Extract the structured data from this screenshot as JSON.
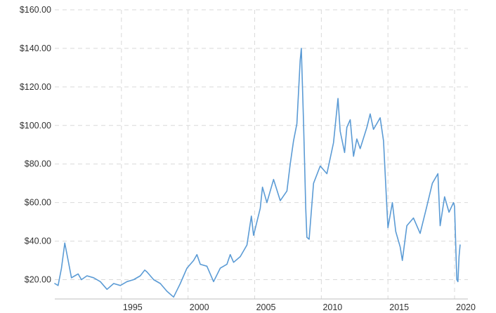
{
  "chart_data": {
    "type": "line",
    "title": "",
    "xlabel": "",
    "ylabel": "",
    "ylim": [
      10,
      160
    ],
    "xlim": [
      "1990-01",
      "2021-01"
    ],
    "y_ticks": [
      20,
      40,
      60,
      80,
      100,
      120,
      140,
      160
    ],
    "y_tick_labels": [
      "$20.00",
      "$40.00",
      "$60.00",
      "$80.00",
      "$100.00",
      "$120.00",
      "$140.00",
      "$160.00"
    ],
    "x_ticks": [
      "1995",
      "2000",
      "2005",
      "2010",
      "2015",
      "2020"
    ],
    "grid": true,
    "line_color": "#5b9bd5",
    "series": [
      {
        "x": [
          "1990-01",
          "1990-04",
          "1990-07",
          "1990-10",
          "1991-01",
          "1991-04",
          "1991-07",
          "1991-10",
          "1992-01",
          "1992-06",
          "1992-12",
          "1993-06",
          "1993-12",
          "1994-06",
          "1994-12",
          "1995-06",
          "1995-12",
          "1996-06",
          "1996-10",
          "1996-12",
          "1997-06",
          "1997-12",
          "1998-06",
          "1998-12",
          "1999-06",
          "1999-12",
          "2000-06",
          "2000-09",
          "2000-12",
          "2001-06",
          "2001-12",
          "2002-06",
          "2002-12",
          "2003-03",
          "2003-06",
          "2003-12",
          "2004-06",
          "2004-10",
          "2004-12",
          "2005-06",
          "2005-08",
          "2005-12",
          "2006-06",
          "2006-12",
          "2007-06",
          "2007-09",
          "2007-12",
          "2008-03",
          "2008-06",
          "2008-07",
          "2008-09",
          "2008-11",
          "2008-12",
          "2009-02",
          "2009-06",
          "2009-12",
          "2010-06",
          "2010-12",
          "2011-04",
          "2011-06",
          "2011-10",
          "2011-12",
          "2012-03",
          "2012-06",
          "2012-09",
          "2012-12",
          "2013-06",
          "2013-09",
          "2013-12",
          "2014-03",
          "2014-06",
          "2014-09",
          "2014-12",
          "2015-01",
          "2015-05",
          "2015-08",
          "2015-12",
          "2016-02",
          "2016-06",
          "2016-12",
          "2017-06",
          "2017-12",
          "2018-05",
          "2018-10",
          "2018-12",
          "2019-04",
          "2019-08",
          "2019-12",
          "2020-01",
          "2020-03",
          "2020-04",
          "2020-05",
          "2020-06"
        ],
        "values": [
          18,
          17,
          26,
          39,
          30,
          21,
          22,
          23,
          20,
          22,
          21,
          19,
          15,
          18,
          17,
          19,
          20,
          22,
          25,
          24,
          20,
          18,
          14,
          11,
          18,
          26,
          30,
          33,
          28,
          27,
          19,
          26,
          28,
          33,
          29,
          32,
          38,
          53,
          43,
          57,
          68,
          60,
          72,
          61,
          66,
          80,
          92,
          101,
          134,
          140,
          101,
          57,
          42,
          41,
          70,
          79,
          75,
          91,
          114,
          97,
          86,
          99,
          103,
          84,
          93,
          88,
          99,
          106,
          98,
          101,
          104,
          92,
          58,
          47,
          60,
          45,
          37,
          30,
          48,
          52,
          44,
          58,
          70,
          75,
          48,
          63,
          55,
          60,
          58,
          20,
          19,
          32,
          38
        ]
      }
    ]
  }
}
